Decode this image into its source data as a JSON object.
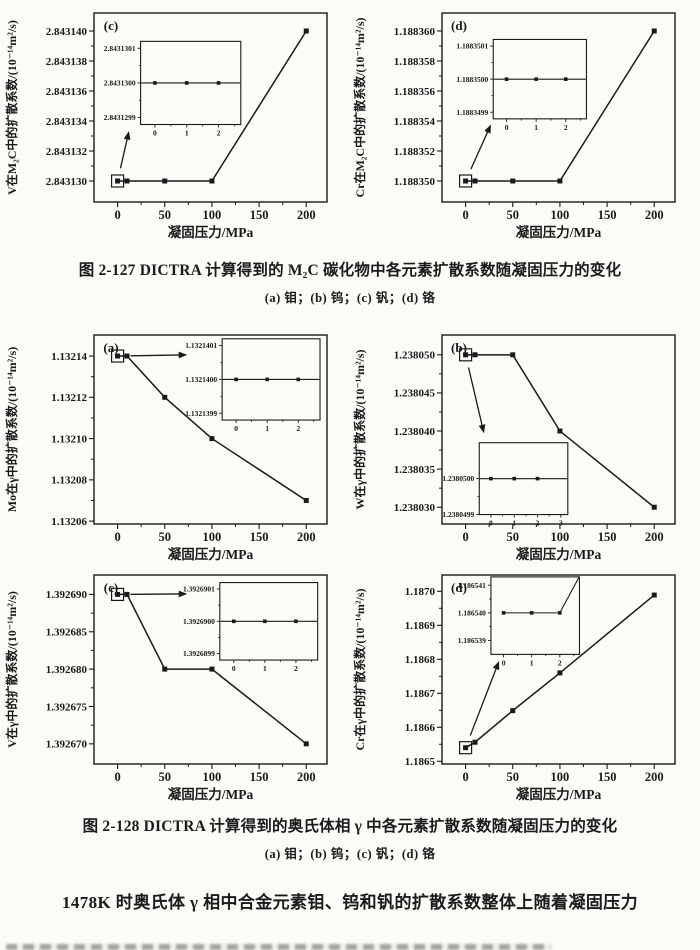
{
  "page": {
    "background": "#fbfbf8",
    "ink_color": "#1a1a1a"
  },
  "figure_127": {
    "caption_title": "图 2-127  DICTRA 计算得到的 M₂C 碳化物中各元素扩散系数随凝固压力的变化",
    "caption_sub": "(a) 钼；(b) 钨；(c) 钒；(d) 铬"
  },
  "figure_128": {
    "caption_title": "图 2-128  DICTRA 计算得到的奥氏体相 γ 中各元素扩散系数随凝固压力的变化",
    "caption_sub": "(a) 钼；(b) 钨；(c) 钒；(d) 铬"
  },
  "body_text": "1478K 时奥氏体 γ 相中合金元素钼、钨和钒的扩散系数整体上随着凝固压力",
  "chart_data": [
    {
      "type": "line",
      "figure": "图 2-127",
      "panel": "(c)",
      "element": "V",
      "phase": "M₂C",
      "xlabel": "凝固压力/MPa",
      "ylabel": "V在M₂C中的扩散系数/(10⁻¹⁴m²/s)",
      "x": [
        0,
        10,
        50,
        100,
        200
      ],
      "y": [
        2.84313,
        2.84313,
        2.84313,
        2.84313,
        2.84314
      ],
      "xticks": [
        0,
        50,
        100,
        150,
        200
      ],
      "yticks": [
        "2.843130",
        "2.843132",
        "2.843134",
        "2.843136",
        "2.843138",
        "2.843140"
      ],
      "ytick_vals": [
        2.84313,
        2.843132,
        2.843134,
        2.843136,
        2.843138,
        2.84314
      ],
      "xlim": [
        -25,
        222
      ],
      "ylim": [
        2.8431286,
        2.8431412
      ],
      "marker": "square",
      "boxed_point_index": 0,
      "inset": {
        "pos": [
          0.2,
          0.15,
          0.43,
          0.44
        ],
        "x": [
          0,
          1,
          2
        ],
        "y": [
          2.84313,
          2.84313,
          2.84313
        ],
        "xticks": [
          0,
          1,
          2
        ],
        "yticks": [
          "2.8431299",
          "2.8431300",
          "2.8431301"
        ],
        "ytick_vals": [
          2.8431299,
          2.84313,
          2.8431301
        ],
        "xlim": [
          -0.45,
          2.7
        ],
        "ylim": [
          2.84312988,
          2.84313012
        ],
        "tail_to_top_right": false,
        "arrow_end": [
          0.15,
          0.625
        ]
      }
    },
    {
      "type": "line",
      "figure": "图 2-127",
      "panel": "(d)",
      "element": "Cr",
      "phase": "M₂C",
      "xlabel": "凝固压力/MPa",
      "ylabel": "Cr在M₂C中的扩散系数/(10⁻¹⁴m²/s)",
      "x": [
        0,
        10,
        50,
        100,
        200
      ],
      "y": [
        1.18835,
        1.18835,
        1.18835,
        1.18835,
        1.18836
      ],
      "xticks": [
        0,
        50,
        100,
        150,
        200
      ],
      "yticks": [
        "1.188350",
        "1.188352",
        "1.188354",
        "1.188356",
        "1.188358",
        "1.188360"
      ],
      "ytick_vals": [
        1.18835,
        1.188352,
        1.188354,
        1.188356,
        1.188358,
        1.18836
      ],
      "xlim": [
        -25,
        222
      ],
      "ylim": [
        1.1883486,
        1.1883612
      ],
      "marker": "square",
      "boxed_point_index": 0,
      "inset": {
        "pos": [
          0.22,
          0.14,
          0.4,
          0.42
        ],
        "x": [
          0,
          1,
          2
        ],
        "y": [
          1.18835,
          1.18835,
          1.18835
        ],
        "xticks": [
          0,
          1,
          2
        ],
        "yticks": [
          "1.1883499",
          "1.1883500",
          "1.1883501"
        ],
        "ytick_vals": [
          1.1883499,
          1.18835,
          1.1883501
        ],
        "xlim": [
          -0.45,
          2.7
        ],
        "ylim": [
          1.18834988,
          1.18835012
        ],
        "tail_to_top_right": false,
        "arrow_end": [
          0.21,
          0.59
        ]
      }
    },
    {
      "type": "line",
      "figure": "图 2-128",
      "panel": "(a)",
      "element": "Mo",
      "phase": "γ",
      "xlabel": "凝固压力/MPa",
      "ylabel": "Mo在γ中的扩散系数/(10⁻¹⁴m²/s)",
      "x": [
        0,
        10,
        50,
        100,
        200
      ],
      "y": [
        1.13214,
        1.13214,
        1.13212,
        1.1321,
        1.13207
      ],
      "xticks": [
        0,
        50,
        100,
        150,
        200
      ],
      "yticks": [
        "1.13206",
        "1.13208",
        "1.13210",
        "1.13212",
        "1.13214"
      ],
      "ytick_vals": [
        1.13206,
        1.13208,
        1.1321,
        1.13212,
        1.13214
      ],
      "xlim": [
        -25,
        222
      ],
      "ylim": [
        1.1320586,
        1.1321502
      ],
      "marker": "square",
      "boxed_point_index": 0,
      "inset": {
        "pos": [
          0.55,
          0.02,
          0.42,
          0.43
        ],
        "x": [
          0,
          1,
          2
        ],
        "y": [
          1.13214,
          1.13214,
          1.13214
        ],
        "xticks": [
          0,
          1,
          2
        ],
        "yticks": [
          "1.1321399",
          "1.1321400",
          "1.1321401"
        ],
        "ytick_vals": [
          1.1321399,
          1.13214,
          1.1321401
        ],
        "xlim": [
          -0.45,
          2.7
        ],
        "ylim": [
          1.13213988,
          1.13214012
        ],
        "tail_to_top_right": false,
        "arrow_end": [
          0.4,
          0.105
        ]
      }
    },
    {
      "type": "line",
      "figure": "图 2-128",
      "panel": "(b)",
      "element": "W",
      "phase": "γ",
      "xlabel": "凝固压力/MPa",
      "ylabel": "W在γ中的扩散系数/(10⁻¹⁴m²/s)",
      "x": [
        0,
        10,
        50,
        100,
        200
      ],
      "y": [
        1.23805,
        1.23805,
        1.23805,
        1.23804,
        1.23803
      ],
      "xticks": [
        0,
        50,
        100,
        150,
        200
      ],
      "yticks": [
        "1.238030",
        "1.238035",
        "1.238040",
        "1.238045",
        "1.238050"
      ],
      "ytick_vals": [
        1.23803,
        1.238035,
        1.23804,
        1.238045,
        1.23805
      ],
      "xlim": [
        -25,
        222
      ],
      "ylim": [
        1.2380278,
        1.2380526
      ],
      "marker": "square",
      "boxed_point_index": 0,
      "inset": {
        "pos": [
          0.16,
          0.57,
          0.38,
          0.38
        ],
        "x": [
          0,
          1,
          2
        ],
        "y": [
          1.23805,
          1.23805,
          1.23805
        ],
        "xticks": [
          0,
          1,
          2,
          3
        ],
        "yticks": [
          "1.2380499",
          "1.2380500"
        ],
        "ytick_vals": [
          1.2380499,
          1.23805
        ],
        "xlim": [
          -0.5,
          3.3
        ],
        "ylim": [
          1.2380499,
          1.2380501
        ],
        "tail_to_top_right": false,
        "arrow_end": [
          0.18,
          0.52
        ]
      }
    },
    {
      "type": "line",
      "figure": "图 2-128",
      "panel": "(c)",
      "element": "V",
      "phase": "γ",
      "xlabel": "凝固压力/MPa",
      "ylabel": "V在γ中的扩散系数/(10⁻¹⁴m²/s)",
      "x": [
        0,
        10,
        50,
        100,
        200
      ],
      "y": [
        1.39269,
        1.39269,
        1.39268,
        1.39268,
        1.39267
      ],
      "xticks": [
        0,
        50,
        100,
        150,
        200
      ],
      "yticks": [
        "1.392670",
        "1.392675",
        "1.392680",
        "1.392685",
        "1.392690"
      ],
      "ytick_vals": [
        1.39267,
        1.392675,
        1.39268,
        1.392685,
        1.39269
      ],
      "xlim": [
        -25,
        222
      ],
      "ylim": [
        1.3926673,
        1.3926926
      ],
      "marker": "square",
      "boxed_point_index": 0,
      "inset": {
        "pos": [
          0.54,
          0.04,
          0.42,
          0.41
        ],
        "x": [
          0,
          1,
          2
        ],
        "y": [
          1.39269,
          1.39269,
          1.39269
        ],
        "xticks": [
          0,
          1,
          2
        ],
        "yticks": [
          "1.3926899",
          "1.3926900",
          "1.3926901"
        ],
        "ytick_vals": [
          1.3926899,
          1.39269,
          1.3926901
        ],
        "xlim": [
          -0.45,
          2.7
        ],
        "ylim": [
          1.39268988,
          1.39269012
        ],
        "tail_to_top_right": false,
        "arrow_end": [
          0.4,
          0.1
        ]
      }
    },
    {
      "type": "line",
      "figure": "图 2-128",
      "panel": "(d)",
      "element": "Cr",
      "phase": "γ",
      "xlabel": "凝固压力/MPa",
      "ylabel": "Cr在γ中的扩散系数/(10⁻¹⁴m²/s)",
      "x": [
        0,
        10,
        50,
        100,
        200
      ],
      "y": [
        1.18654,
        1.186556,
        1.186649,
        1.18676,
        1.186989
      ],
      "xticks": [
        0,
        50,
        100,
        150,
        200
      ],
      "yticks": [
        "1.1865",
        "1.1866",
        "1.1867",
        "1.1868",
        "1.1869",
        "1.1870"
      ],
      "ytick_vals": [
        1.1865,
        1.1866,
        1.1867,
        1.1868,
        1.1869,
        1.187
      ],
      "xlim": [
        -25,
        222
      ],
      "ylim": [
        1.186492,
        1.187048
      ],
      "marker": "square",
      "boxed_point_index": 0,
      "inset": {
        "pos": [
          0.21,
          0.01,
          0.38,
          0.41
        ],
        "x": [
          0,
          1,
          2
        ],
        "y": [
          1.18654,
          1.18654,
          1.18654
        ],
        "xticks": [
          0,
          1,
          2
        ],
        "yticks": [
          "1.186539",
          "1.186540",
          "1.186541"
        ],
        "ytick_vals": [
          1.186539,
          1.18654,
          1.186541
        ],
        "xlim": [
          -0.45,
          2.7
        ],
        "ylim": [
          1.1865385,
          1.1865413
        ],
        "tail_to_top_right": true,
        "arrow_end": [
          0.245,
          0.455
        ]
      }
    }
  ]
}
